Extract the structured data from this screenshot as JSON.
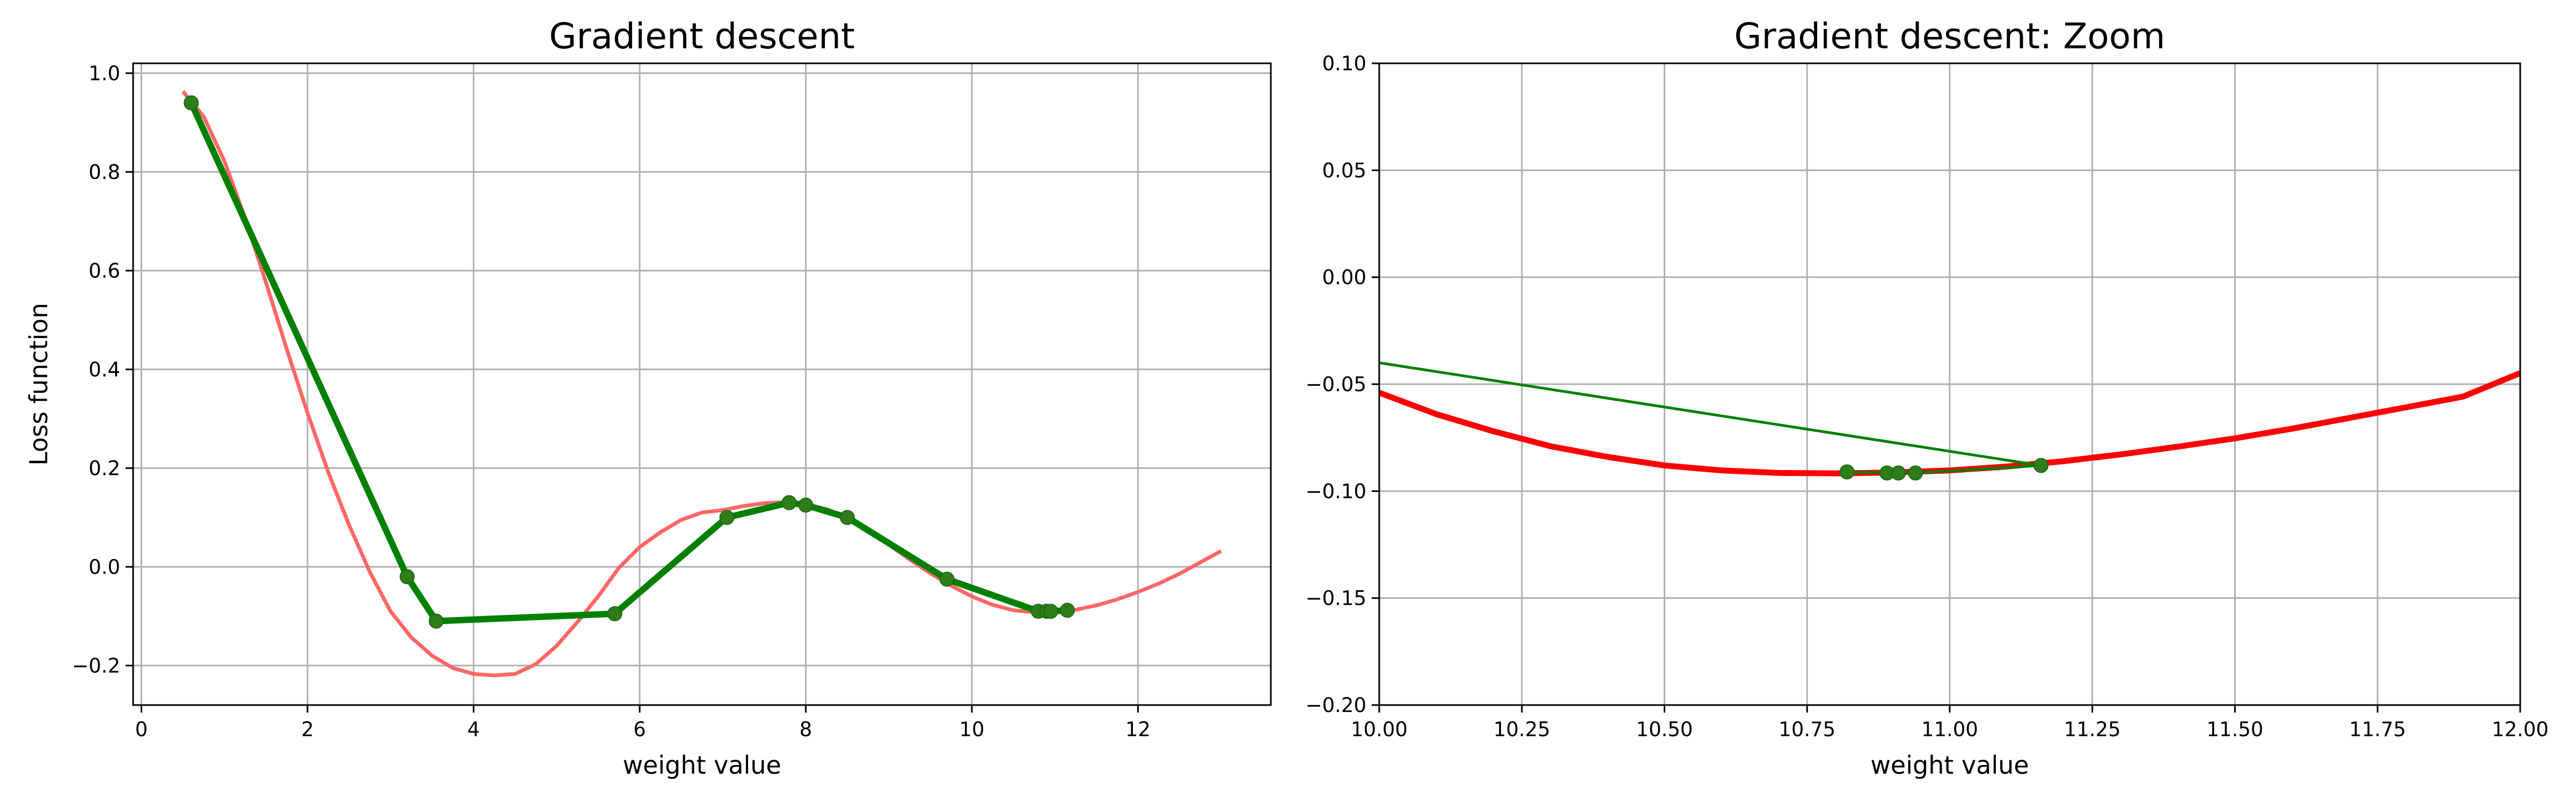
{
  "chart_data": [
    {
      "type": "line",
      "title": "Gradient descent",
      "xlabel": "weight value",
      "ylabel": "Loss function",
      "xlim": [
        -0.1,
        13.6
      ],
      "ylim": [
        -0.28,
        1.02
      ],
      "xticks": [
        0,
        2,
        4,
        6,
        8,
        10,
        12
      ],
      "xtick_labels": [
        "0",
        "2",
        "4",
        "6",
        "8",
        "10",
        "12"
      ],
      "yticks": [
        -0.2,
        0.0,
        0.2,
        0.4,
        0.6,
        0.8,
        1.0
      ],
      "ytick_labels": [
        "−0.2",
        "0.0",
        "0.2",
        "0.4",
        "0.6",
        "0.8",
        "1.0"
      ],
      "grid": true,
      "series": [
        {
          "kind": "curve",
          "color": "#ff6666",
          "x": [
            0.5,
            0.75,
            1.0,
            1.25,
            1.5,
            1.75,
            2.0,
            2.25,
            2.5,
            2.75,
            3.0,
            3.25,
            3.5,
            3.75,
            4.0,
            4.25,
            4.5,
            4.75,
            5.0,
            5.25,
            5.5,
            5.75,
            6.0,
            6.25,
            6.5,
            6.75,
            7.0,
            7.25,
            7.5,
            7.75,
            8.0,
            8.25,
            8.5,
            8.75,
            9.0,
            9.25,
            9.5,
            9.75,
            10.0,
            10.25,
            10.5,
            10.75,
            11.0,
            11.25,
            11.5,
            11.75,
            12.0,
            12.25,
            12.5,
            12.75,
            13.0
          ],
          "y": [
            0.963,
            0.912,
            0.822,
            0.706,
            0.576,
            0.441,
            0.312,
            0.192,
            0.085,
            -0.01,
            -0.09,
            -0.143,
            -0.18,
            -0.205,
            -0.217,
            -0.22,
            -0.217,
            -0.197,
            -0.16,
            -0.112,
            -0.06,
            -0.002,
            0.04,
            0.07,
            0.095,
            0.11,
            0.115,
            0.123,
            0.129,
            0.131,
            0.127,
            0.117,
            0.1,
            0.075,
            0.045,
            0.015,
            -0.013,
            -0.038,
            -0.06,
            -0.077,
            -0.088,
            -0.092,
            -0.091,
            -0.087,
            -0.078,
            -0.066,
            -0.051,
            -0.034,
            -0.014,
            0.009,
            0.032
          ]
        },
        {
          "kind": "path",
          "color": "#008000",
          "x": [
            0.6,
            3.2,
            3.55,
            5.7,
            7.05,
            7.8,
            8.0,
            8.5,
            9.7,
            10.8,
            10.9,
            10.95,
            11.15
          ],
          "y": [
            0.94,
            -0.02,
            -0.11,
            -0.095,
            0.1,
            0.13,
            0.125,
            0.1,
            -0.025,
            -0.09,
            -0.09,
            -0.09,
            -0.088
          ]
        }
      ]
    },
    {
      "type": "line",
      "title": "Gradient descent: Zoom",
      "xlabel": "weight value",
      "ylabel": "",
      "xlim": [
        10.0,
        12.0
      ],
      "ylim": [
        -0.2,
        0.1
      ],
      "xticks": [
        10.0,
        10.25,
        10.5,
        10.75,
        11.0,
        11.25,
        11.5,
        11.75,
        12.0
      ],
      "xtick_labels": [
        "10.00",
        "10.25",
        "10.50",
        "10.75",
        "11.00",
        "11.25",
        "11.50",
        "11.75",
        "12.00"
      ],
      "yticks": [
        -0.2,
        -0.15,
        -0.1,
        -0.05,
        0.0,
        0.05,
        0.1
      ],
      "ytick_labels": [
        "−0.20",
        "−0.15",
        "−0.10",
        "−0.05",
        "0.00",
        "0.05",
        "0.10"
      ],
      "grid": true,
      "series": [
        {
          "kind": "curve",
          "color": "#ff0000",
          "x": [
            10.0,
            10.1,
            10.2,
            10.3,
            10.4,
            10.5,
            10.6,
            10.7,
            10.8,
            10.9,
            11.0,
            11.1,
            11.2,
            11.3,
            11.4,
            11.5,
            11.6,
            11.7,
            11.8,
            11.9,
            12.0
          ],
          "y": [
            -0.054,
            -0.064,
            -0.072,
            -0.079,
            -0.084,
            -0.088,
            -0.0903,
            -0.0915,
            -0.0917,
            -0.0913,
            -0.0903,
            -0.0885,
            -0.086,
            -0.0828,
            -0.0792,
            -0.0753,
            -0.0708,
            -0.0658,
            -0.0608,
            -0.0558,
            -0.0448
          ]
        },
        {
          "kind": "line",
          "color": "#008000",
          "x": [
            10.0,
            11.16
          ],
          "y": [
            -0.04,
            -0.088
          ]
        },
        {
          "kind": "points",
          "color": "#008000",
          "x": [
            10.82,
            10.89,
            10.91,
            10.94,
            11.16
          ],
          "y": [
            -0.091,
            -0.0915,
            -0.0915,
            -0.0915,
            -0.088
          ]
        }
      ]
    }
  ]
}
